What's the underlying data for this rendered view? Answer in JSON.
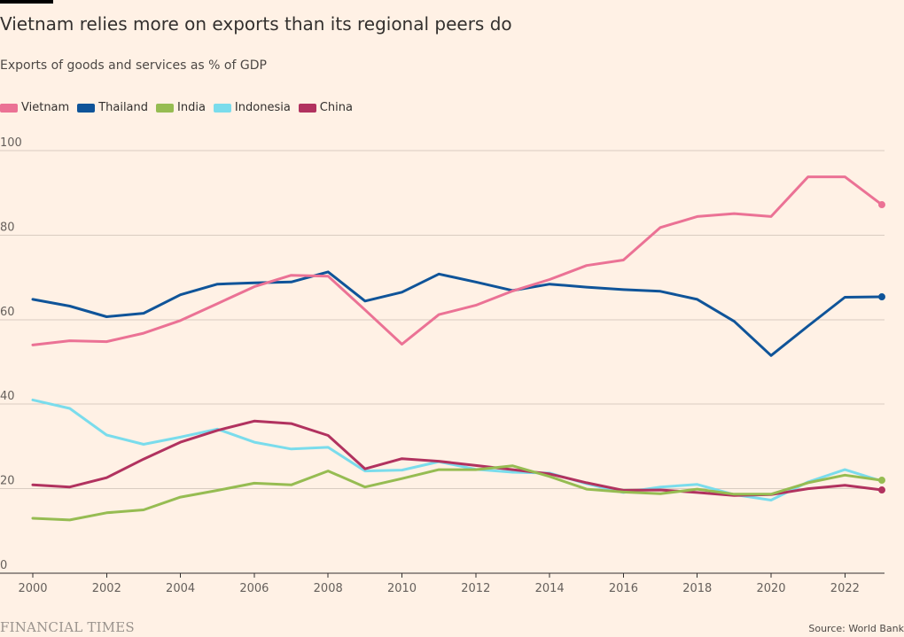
{
  "header": {
    "title": "Vietnam relies more on exports than its regional peers do",
    "subtitle": "Exports of goods and services as % of GDP"
  },
  "footer": {
    "brand": "FINANCIAL TIMES",
    "source": "Source: World Bank"
  },
  "chart_data": {
    "type": "line",
    "title": "Vietnam relies more on exports than its regional peers do",
    "subtitle": "Exports of goods and services as % of GDP",
    "xlabel": "",
    "ylabel": "",
    "xlim": [
      2000,
      2023
    ],
    "ylim": [
      0,
      100
    ],
    "xticks": [
      2000,
      2002,
      2004,
      2006,
      2008,
      2010,
      2012,
      2014,
      2016,
      2018,
      2020,
      2022
    ],
    "yticks": [
      0,
      20,
      40,
      60,
      80,
      100
    ],
    "grid": true,
    "legend_position": "top-left",
    "x": [
      2000,
      2001,
      2002,
      2003,
      2004,
      2005,
      2006,
      2007,
      2008,
      2009,
      2010,
      2011,
      2012,
      2013,
      2014,
      2015,
      2016,
      2017,
      2018,
      2019,
      2020,
      2021,
      2022,
      2023
    ],
    "series": [
      {
        "name": "Vietnam",
        "color": "#EB7295",
        "values": [
          54.0,
          55.0,
          54.8,
          56.8,
          59.8,
          63.8,
          67.8,
          70.5,
          70.3,
          62.3,
          54.2,
          61.2,
          63.4,
          66.8,
          69.5,
          72.8,
          74.1,
          81.8,
          84.4,
          85.1,
          84.4,
          93.8,
          93.8,
          87.2
        ]
      },
      {
        "name": "Thailand",
        "color": "#0F5499",
        "values": [
          64.8,
          63.2,
          60.7,
          61.5,
          65.9,
          68.4,
          68.7,
          68.9,
          71.3,
          64.4,
          66.5,
          70.8,
          68.9,
          66.9,
          68.4,
          67.7,
          67.1,
          66.7,
          64.8,
          59.6,
          51.5,
          58.5,
          65.3,
          65.4
        ]
      },
      {
        "name": "India",
        "color": "#96BC52",
        "values": [
          13.0,
          12.6,
          14.3,
          15.0,
          18.0,
          19.6,
          21.3,
          20.9,
          24.2,
          20.4,
          22.4,
          24.5,
          24.5,
          25.4,
          22.9,
          19.9,
          19.2,
          18.8,
          19.9,
          18.7,
          18.7,
          21.4,
          23.2,
          22.0
        ]
      },
      {
        "name": "Indonesia",
        "color": "#7ADCEC",
        "values": [
          41.0,
          39.0,
          32.7,
          30.5,
          32.2,
          34.1,
          31.0,
          29.4,
          29.8,
          24.2,
          24.4,
          26.4,
          24.6,
          23.9,
          23.7,
          21.2,
          19.1,
          20.4,
          21.0,
          18.6,
          17.3,
          21.6,
          24.5,
          21.8
        ]
      },
      {
        "name": "China",
        "color": "#B1325F",
        "values": [
          20.9,
          20.4,
          22.6,
          27.0,
          31.0,
          33.8,
          36.0,
          35.4,
          32.6,
          24.7,
          27.1,
          26.5,
          25.5,
          24.5,
          23.5,
          21.4,
          19.6,
          19.7,
          19.1,
          18.4,
          18.6,
          20.0,
          20.8,
          19.7
        ]
      }
    ]
  }
}
